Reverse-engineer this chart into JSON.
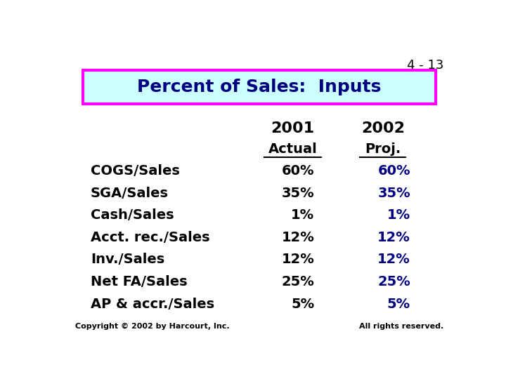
{
  "slide_number": "4 - 13",
  "title": "Percent of Sales:  Inputs",
  "title_bg_color": "#ccffff",
  "title_border_color": "#ff00ff",
  "title_text_color": "#000080",
  "col1_header": "2001",
  "col2_header": "2002",
  "col1_sub": "Actual",
  "col2_sub": "Proj.",
  "rows": [
    [
      "COGS/Sales",
      "60%",
      "60%"
    ],
    [
      "SGA/Sales",
      "35%",
      "35%"
    ],
    [
      "Cash/Sales",
      "1%",
      "1%"
    ],
    [
      "Acct. rec./Sales",
      "12%",
      "12%"
    ],
    [
      "Inv./Sales",
      "12%",
      "12%"
    ],
    [
      "Net FA/Sales",
      "25%",
      "25%"
    ],
    [
      "AP & accr./Sales",
      "5%",
      "5%"
    ]
  ],
  "label_color": "#000000",
  "col1_color": "#000000",
  "col2_color": "#000080",
  "header_color": "#000000",
  "footer_left": "Copyright © 2002 by Harcourt, Inc.",
  "footer_right": "All rights reserved.",
  "bg_color": "#ffffff",
  "slide_number_color": "#000000"
}
